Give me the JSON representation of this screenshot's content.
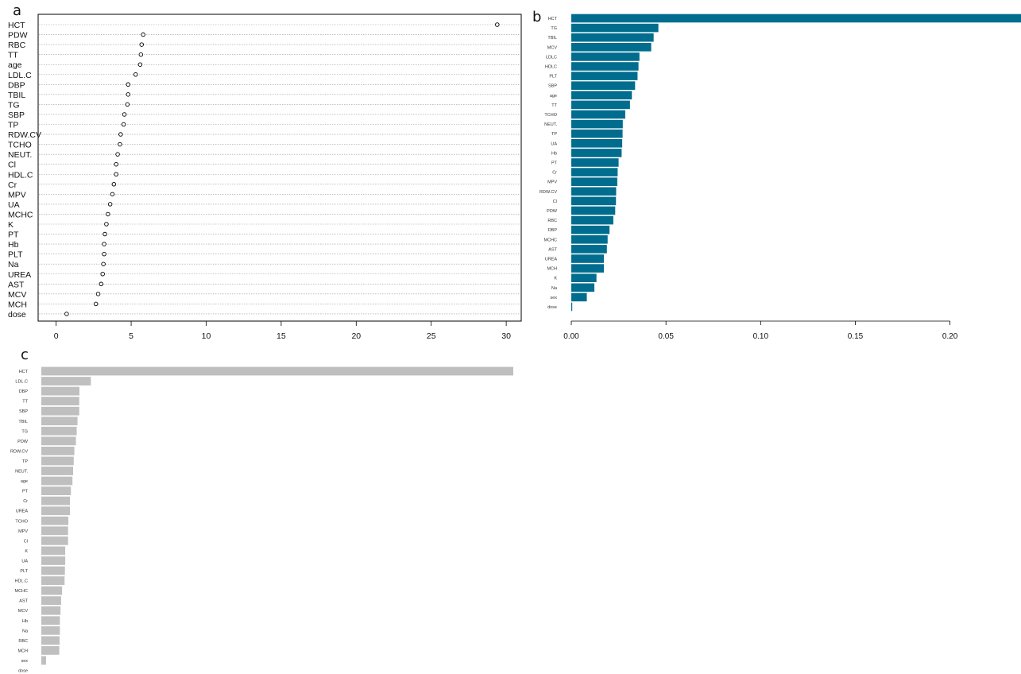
{
  "panel_labels": {
    "a": "a",
    "b": "b",
    "c": "c"
  },
  "colors": {
    "panel_b_bar": "#006d8f",
    "panel_c_bar": "#bfbfbf"
  },
  "chart_data": [
    {
      "type": "scatter",
      "style": "dotchart",
      "panel": "a",
      "categories": [
        "HCT",
        "PDW",
        "RBC",
        "TT",
        "age",
        "LDL.C",
        "DBP",
        "TBIL",
        "TG",
        "SBP",
        "TP",
        "RDW.CV",
        "TCHO",
        "NEUT.",
        "Cl",
        "HDL.C",
        "Cr",
        "MPV",
        "UA",
        "MCHC",
        "K",
        "PT",
        "Hb",
        "PLT",
        "Na",
        "UREA",
        "AST",
        "MCV",
        "MCH",
        "dose"
      ],
      "values": [
        29.4,
        5.8,
        5.7,
        5.65,
        5.6,
        5.3,
        4.8,
        4.8,
        4.75,
        4.55,
        4.5,
        4.3,
        4.25,
        4.1,
        4.0,
        4.0,
        3.85,
        3.75,
        3.6,
        3.45,
        3.35,
        3.25,
        3.2,
        3.2,
        3.15,
        3.1,
        3.0,
        2.8,
        2.65,
        0.7
      ],
      "xlim": [
        -1.2,
        31
      ],
      "xticks": [
        0,
        5,
        10,
        15,
        20,
        25,
        30
      ],
      "grid": true
    },
    {
      "type": "bar",
      "orientation": "horizontal",
      "panel": "b",
      "categories": [
        "HCT",
        "TG",
        "TBIL",
        "MCV",
        "LDLC",
        "HDLC",
        "PLT",
        "SBP",
        "age",
        "TT",
        "TCHO",
        "NEUT.",
        "TP",
        "UA",
        "Hb",
        "PT",
        "Cr",
        "MPV",
        "RDW.CV",
        "Cl",
        "PDW",
        "RBC",
        "DBP",
        "MCHC",
        "AST",
        "UREA",
        "MCH",
        "K",
        "Na",
        "sex",
        "dose"
      ],
      "values": [
        0.24,
        0.046,
        0.0435,
        0.0422,
        0.036,
        0.0355,
        0.035,
        0.0337,
        0.032,
        0.031,
        0.0285,
        0.0272,
        0.0271,
        0.0269,
        0.0266,
        0.025,
        0.0245,
        0.0243,
        0.0237,
        0.0236,
        0.0232,
        0.0222,
        0.0202,
        0.0192,
        0.0188,
        0.0172,
        0.0172,
        0.0133,
        0.0122,
        0.0082,
        0.0005
      ],
      "xlim": [
        0,
        0.2375
      ],
      "xticks": [
        "0.00",
        "0.05",
        "0.10",
        "0.15",
        "0.20"
      ]
    },
    {
      "type": "bar",
      "orientation": "horizontal",
      "panel": "c",
      "categories": [
        "HCT",
        "LDL.C",
        "DBP",
        "TT",
        "SBP",
        "TBIL",
        "TG",
        "PDW",
        "RDW.CV",
        "TP",
        "NEUT.",
        "age",
        "PT",
        "Cr",
        "UREA",
        "TCHO",
        "MPV",
        "Cl",
        "K",
        "UA",
        "PLT",
        "HDL.C",
        "MCHC",
        "AST",
        "MCV",
        "Hb",
        "Na",
        "RBC",
        "MCH",
        "sex",
        "dose"
      ],
      "values": [
        30,
        3.15,
        2.42,
        2.41,
        2.41,
        2.3,
        2.25,
        2.2,
        2.1,
        2.06,
        2.02,
        1.98,
        1.88,
        1.82,
        1.82,
        1.72,
        1.7,
        1.7,
        1.52,
        1.52,
        1.5,
        1.48,
        1.32,
        1.26,
        1.22,
        1.18,
        1.18,
        1.16,
        1.14,
        0.3,
        0
      ],
      "xlim": [
        0,
        30
      ]
    }
  ]
}
